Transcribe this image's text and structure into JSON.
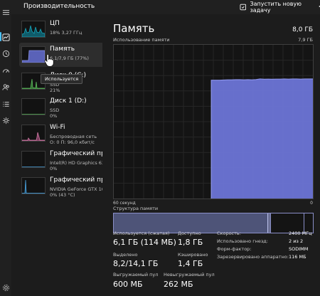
{
  "app": {
    "title": "Производительность",
    "run_task_label": "Запустить новую задачу"
  },
  "rail": {
    "icons": [
      "hamburger-icon",
      "performance-icon",
      "history-icon",
      "startup-icon",
      "users-icon",
      "details-icon",
      "services-icon",
      "settings-icon"
    ],
    "accent": "#4cc2ff"
  },
  "sidebar": {
    "items": [
      {
        "name": "ЦП",
        "sub1": "18%  3,27 ГГц",
        "color": "#17a2b8"
      },
      {
        "name": "Память",
        "sub1": "6,1/7,9 ГБ (77%)",
        "color": "#8b93e8"
      },
      {
        "name": "Диск 0 (C:)",
        "sub1": "SSD",
        "sub2": "21%",
        "color": "#5cb85c"
      },
      {
        "name": "Диск 1 (D:)",
        "sub1": "SSD",
        "sub2": "0%",
        "color": "#5cb85c"
      },
      {
        "name": "Wi-Fi",
        "sub1": "Беспроводная сеть",
        "sub2": "О: 0 П: 96,0 кбит/с",
        "color": "#d17ba6"
      },
      {
        "name": "Графический процессор 0",
        "sub1": "Intel(R) HD Graphics 630",
        "sub2": "0%",
        "color": "#4aa3df"
      },
      {
        "name": "Графический процессор 1",
        "sub1": "NVIDIA GeForce GTX 1050",
        "sub2": "0%  (43 °C)",
        "color": "#4aa3df"
      }
    ],
    "tooltip": "Используется"
  },
  "memory": {
    "title": "Память",
    "total": "8,0 ГБ",
    "usage_label": "Использование памяти",
    "usage_max": "7,9 ГБ",
    "graph_left": "60 секунд",
    "graph_right": "0",
    "structure_label": "Структура памяти",
    "line_color": "#8b93e8",
    "fill_color": "#6b74d6",
    "usage_series": [
      0,
      0,
      0,
      0,
      0,
      0,
      0,
      0,
      0,
      0,
      0,
      0,
      0,
      0,
      0,
      0,
      0,
      0,
      0,
      0,
      0,
      0,
      0,
      0,
      0.77,
      0.77,
      0.77,
      0.771,
      0.772,
      0.772,
      0.773,
      0.773,
      0.772,
      0.773,
      0.772,
      0.774,
      0.778,
      0.776,
      0.777,
      0.776,
      0.777,
      0.777,
      0.778,
      0.777,
      0.778,
      0.778,
      0.777,
      0.778,
      0.778,
      0.778
    ],
    "stats": {
      "in_use_label": "Используется (сжатая)",
      "in_use_value": "6,1 ГБ (114 МБ)",
      "available_label": "Доступно",
      "available_value": "1,8 ГБ",
      "committed_label": "Выделено",
      "committed_value": "8,2/14,1 ГБ",
      "cached_label": "Кэшировано",
      "cached_value": "1,4 ГБ",
      "paged_label": "Выгружаемый пул",
      "paged_value": "600 МБ",
      "nonpaged_label": "Невыгружаемый пул",
      "nonpaged_value": "262 МБ"
    },
    "details": [
      {
        "key": "Скорость:",
        "value": "2400 МГц"
      },
      {
        "key": "Использовано гнезд:",
        "value": "2 из 2"
      },
      {
        "key": "Форм-фактор:",
        "value": "SODIMM"
      },
      {
        "key": "Зарезервировано аппаратно:",
        "value": "116 МБ"
      }
    ]
  }
}
